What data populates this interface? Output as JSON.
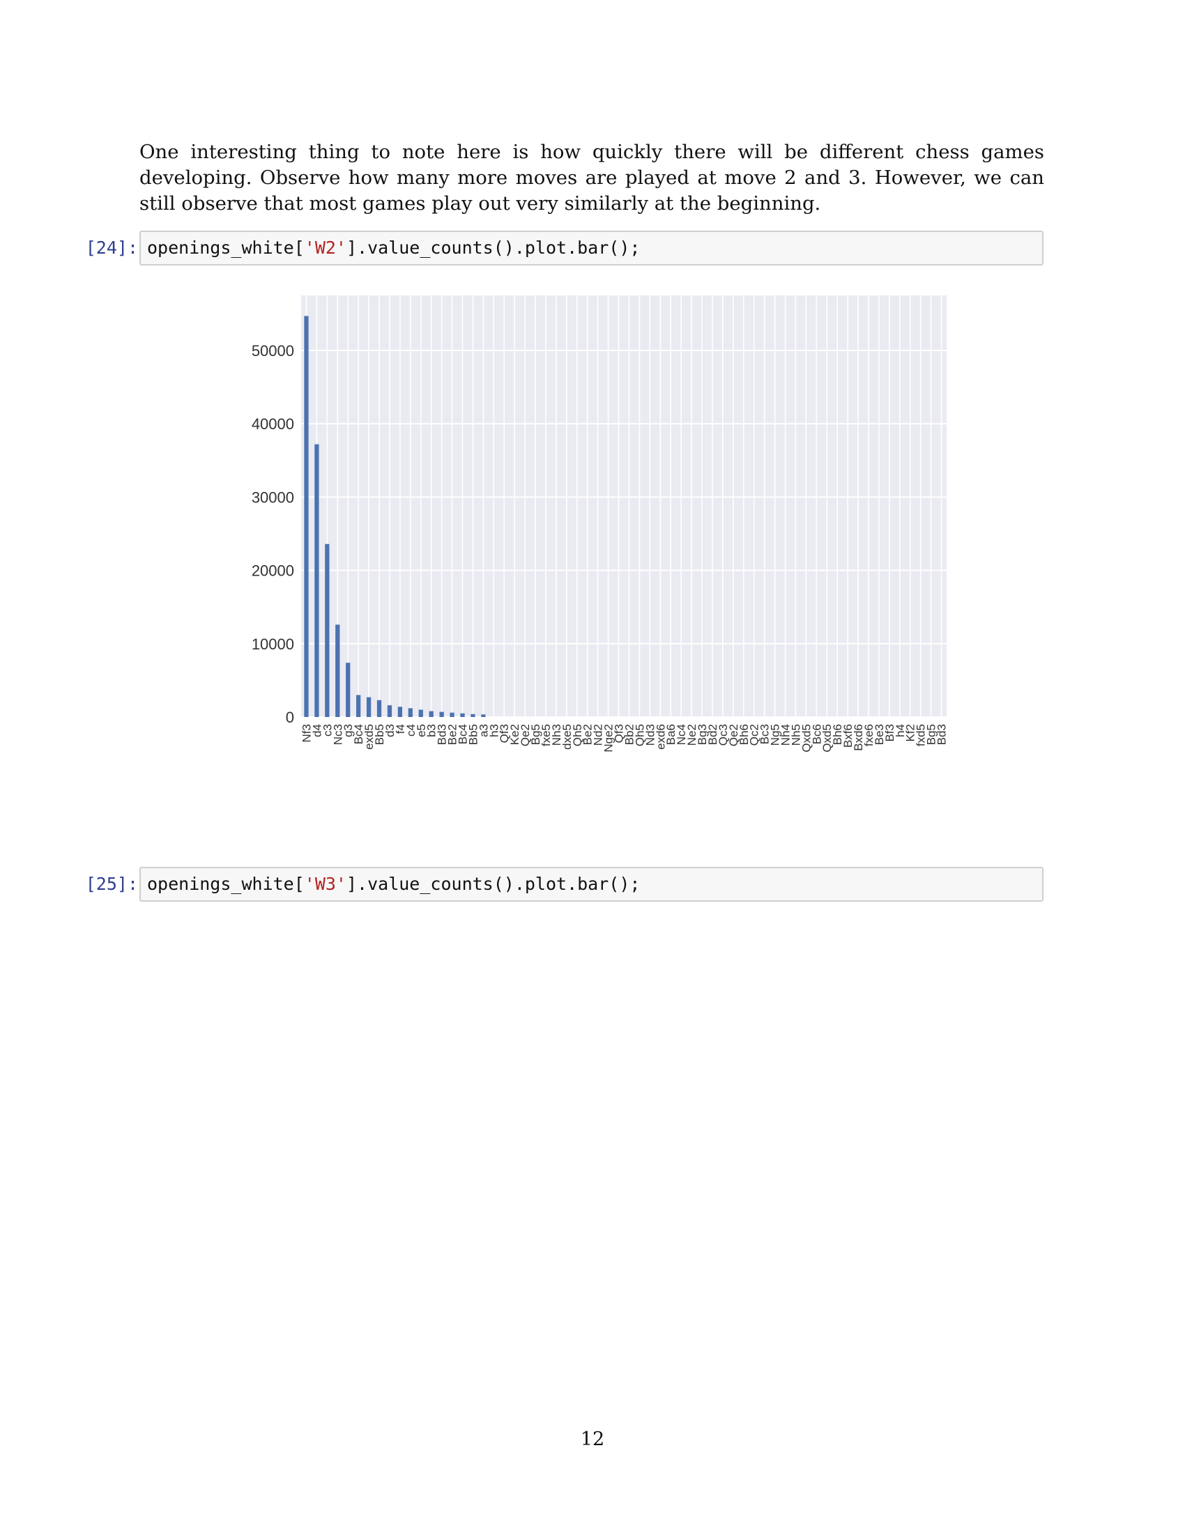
{
  "paragraph": "One interesting thing to note here is how quickly there will be different chess games developing. Observe how many more moves are played at move 2 and 3. However, we can still observe that most games play out very similarly at the beginning.",
  "cells": [
    {
      "prompt": "[24]:",
      "code_pre": "openings_white[",
      "code_str": "'W2'",
      "code_post": "].value_counts().plot.bar();"
    },
    {
      "prompt": "[25]:",
      "code_pre": "openings_white[",
      "code_str": "'W3'",
      "code_post": "].value_counts().plot.bar();"
    }
  ],
  "chart_data": {
    "type": "bar",
    "title": "",
    "xlabel": "",
    "ylabel": "",
    "ylim": [
      0,
      57500
    ],
    "yticks": [
      "0",
      "10000",
      "20000",
      "30000",
      "40000",
      "50000"
    ],
    "grid": true,
    "bar_color": "#4c72b0",
    "plot_background": "#eaeaf2",
    "categories": [
      "Nf3",
      "d4",
      "c3",
      "Nc3",
      "g3",
      "Bc4",
      "exd5",
      "Bb5",
      "d3",
      "f4",
      "c4",
      "e5",
      "b3",
      "Bd3",
      "Be2",
      "Bc4",
      "Bb5",
      "a3",
      "h3",
      "Qf3",
      "Ke2",
      "Qe2",
      "Bg5",
      "fxe5",
      "Nh3",
      "dxe5",
      "Qh5",
      "Be2",
      "Nd2",
      "Nge2",
      "Qf3",
      "Bb2",
      "Qh5",
      "Nd3",
      "exd6",
      "Ba6",
      "Nc4",
      "Ne2",
      "Bg3",
      "Bd2",
      "Qc3",
      "Qe2",
      "Bh6",
      "Qc2",
      "Bc3",
      "Ng5",
      "Nh4",
      "Nh5",
      "Qxd5",
      "Bc6",
      "Qxd5",
      "Bh6",
      "Bxf6",
      "Bxd6",
      "fxe6",
      "Be3",
      "Bf3",
      "h4",
      "Kf2",
      "fxd5",
      "Bg5",
      "Bd3"
    ],
    "values": [
      54700,
      37200,
      23600,
      12600,
      7400,
      3000,
      2700,
      2300,
      1600,
      1400,
      1200,
      1000,
      800,
      700,
      600,
      500,
      400,
      350,
      0,
      0,
      0,
      0,
      0,
      0,
      0,
      0,
      0,
      0,
      0,
      0,
      0,
      0,
      0,
      0,
      0,
      0,
      0,
      0,
      0,
      0,
      0,
      0,
      0,
      0,
      0,
      0,
      0,
      0,
      0,
      0,
      0,
      0,
      0,
      0,
      0,
      0,
      0,
      0,
      0,
      0,
      0,
      0
    ]
  },
  "page_number": "12"
}
